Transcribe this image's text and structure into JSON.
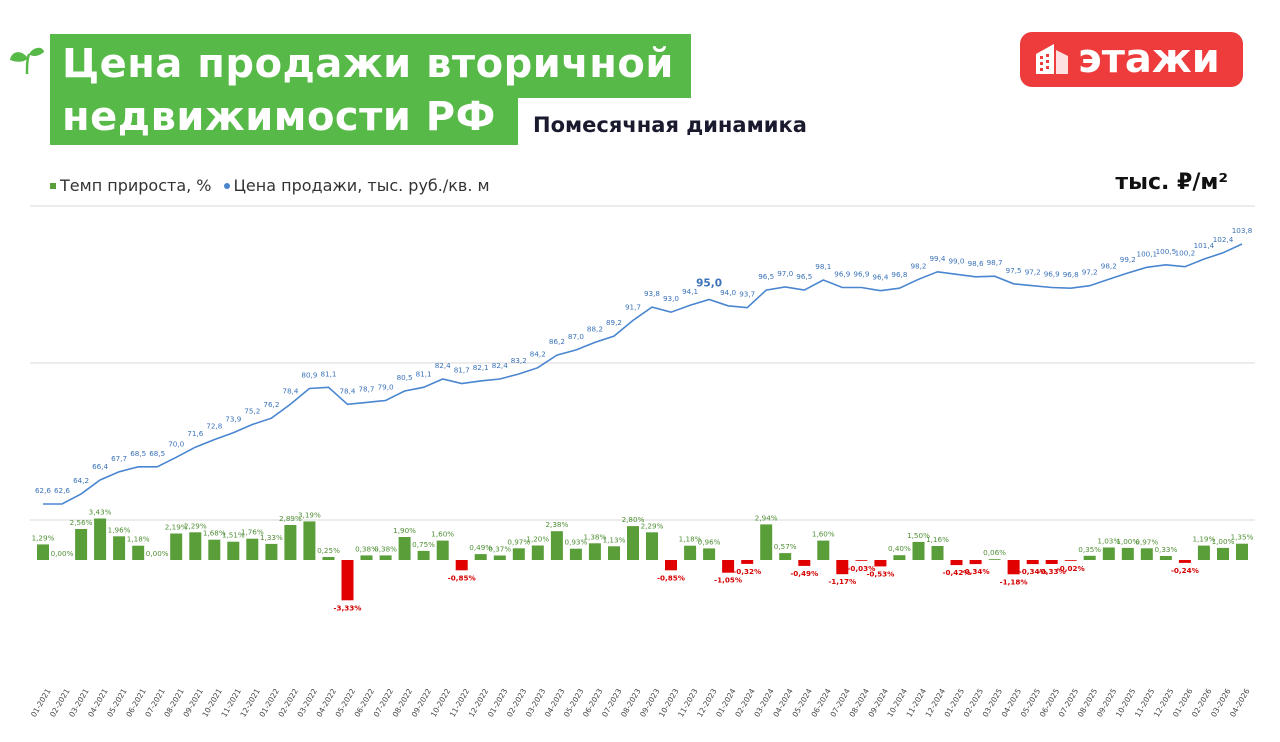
{
  "header": {
    "title_line1": "Цена продажи вторичной",
    "title_line2": "недвижимости РФ",
    "subtitle": "Помесячная динамика",
    "logo_text": "этажи",
    "unit": "тыс. ₽/м²"
  },
  "colors": {
    "title_bg": "#57b947",
    "logo_bg": "#ee3b3b",
    "line": "#4a86d0",
    "bar_positive": "#5a9e3a",
    "bar_negative": "#e00000"
  },
  "chart_data": {
    "type": "bar+line",
    "legend": [
      {
        "label": "Темп прироста, %",
        "marker": "square",
        "color": "#5a9e3a"
      },
      {
        "label": "Цена продажи, тыс. руб./кв. м",
        "marker": "circle",
        "color": "#4a86d0"
      }
    ],
    "categories": [
      "01-2021",
      "02-2021",
      "03-2021",
      "04-2021",
      "05-2021",
      "06-2021",
      "07-2021",
      "08-2021",
      "09-2021",
      "10-2021",
      "11-2021",
      "12-2021",
      "01-2022",
      "02-2022",
      "03-2022",
      "04-2022",
      "05-2022",
      "06-2022",
      "07-2022",
      "08-2022",
      "09-2022",
      "10-2022",
      "11-2022",
      "12-2022",
      "01-2023",
      "02-2023",
      "03-2023",
      "04-2023",
      "05-2023",
      "06-2023",
      "07-2023",
      "08-2023",
      "09-2023",
      "10-2023",
      "11-2023",
      "12-2023",
      "01-2024",
      "02-2024",
      "03-2024",
      "04-2024",
      "05-2024",
      "06-2024",
      "07-2024",
      "08-2024",
      "09-2024",
      "10-2024",
      "11-2024",
      "12-2024",
      "01-2025",
      "02-2025",
      "03-2025",
      "04-2025",
      "05-2025",
      "06-2025",
      "07-2025",
      "08-2025",
      "09-2025",
      "10-2025",
      "11-2025",
      "12-2025",
      "01-2026",
      "02-2026",
      "03-2026",
      "04-2026"
    ],
    "series": [
      {
        "name": "Цена продажи, тыс. руб./кв. м",
        "type": "line",
        "values": [
          62.6,
          62.6,
          64.2,
          66.4,
          67.7,
          68.5,
          68.5,
          70.0,
          71.6,
          72.8,
          73.9,
          75.2,
          76.2,
          78.4,
          80.9,
          81.1,
          78.4,
          78.7,
          79.0,
          80.5,
          81.1,
          82.4,
          81.7,
          82.1,
          82.4,
          83.2,
          84.2,
          86.2,
          87.0,
          88.2,
          89.2,
          91.7,
          93.8,
          93.0,
          94.1,
          95.0,
          94.0,
          93.7,
          96.5,
          97.0,
          96.5,
          98.1,
          96.9,
          96.9,
          96.4,
          96.8,
          98.2,
          99.4,
          99.0,
          98.6,
          98.7,
          97.5,
          97.2,
          96.9,
          96.8,
          97.2,
          98.2,
          99.2,
          100.1,
          100.5,
          100.2,
          101.4,
          102.4,
          103.8
        ],
        "labels": [
          "62,6",
          "62,6",
          "64,2",
          "66,4",
          "67,7",
          "68,5",
          "68,5",
          "70,0",
          "71,6",
          "72,8",
          "73,9",
          "75,2",
          "76,2",
          "78,4",
          "80,9",
          "81,1",
          "78,4",
          "78,7",
          "79,0",
          "80,5",
          "81,1",
          "82,4",
          "81,7",
          "82,1",
          "82,4",
          "83,2",
          "84,2",
          "86,2",
          "87,0",
          "88,2",
          "89,2",
          "91,7",
          "93,8",
          "93,0",
          "94,1",
          "95,0",
          "94,0",
          "93,7",
          "96,5",
          "97,0",
          "96,5",
          "98,1",
          "96,9",
          "96,9",
          "96,4",
          "96,8",
          "98,2",
          "99,4",
          "99,0",
          "98,6",
          "98,7",
          "97,5",
          "97,2",
          "96,9",
          "96,8",
          "97,2",
          "98,2",
          "99,2",
          "100,1",
          "100,5",
          "100,2",
          "101,4",
          "102,4",
          "103,8"
        ]
      },
      {
        "name": "Темп прироста, %",
        "type": "bar",
        "values": [
          1.29,
          0.0,
          2.56,
          3.43,
          1.96,
          1.18,
          0.0,
          2.19,
          2.29,
          1.68,
          1.51,
          1.76,
          1.33,
          2.89,
          3.19,
          0.25,
          -3.33,
          0.38,
          0.38,
          1.9,
          0.75,
          1.6,
          -0.85,
          0.49,
          0.37,
          0.97,
          1.2,
          2.38,
          0.93,
          1.38,
          1.13,
          2.8,
          2.29,
          -0.85,
          1.18,
          0.96,
          -1.05,
          -0.32,
          2.94,
          0.57,
          -0.49,
          1.6,
          -1.17,
          -0.03,
          -0.53,
          0.4,
          1.5,
          1.16,
          -0.42,
          -0.34,
          0.06,
          -1.18,
          -0.34,
          -0.33,
          -0.02,
          0.35,
          1.03,
          1.0,
          0.97,
          0.33,
          -0.24,
          1.19,
          1.0,
          1.35
        ],
        "labels": [
          "1,29%",
          "0,00%",
          "2,56%",
          "3,43%",
          "1,96%",
          "1,18%",
          "0,00%",
          "2,19%",
          "2,29%",
          "1,68%",
          "1,51%",
          "1,76%",
          "1,33%",
          "2,89%",
          "3,19%",
          "0,25%",
          "-3,33%",
          "0,38%",
          "0,38%",
          "1,90%",
          "0,75%",
          "1,60%",
          "-0,85%",
          "0,49%",
          "0,37%",
          "0,97%",
          "1,20%",
          "2,38%",
          "0,93%",
          "1,38%",
          "1,13%",
          "2,80%",
          "2,29%",
          "-0,85%",
          "1,18%",
          "0,96%",
          "-1,05%",
          "-0,32%",
          "2,94%",
          "0,57%",
          "-0,49%",
          "1,60%",
          "-1,17%",
          "-0,03%",
          "-0,53%",
          "0,40%",
          "1,50%",
          "1,16%",
          "-0,42%",
          "-0,34%",
          "0,06%",
          "-1,18%",
          "-0,34%",
          "-0,33%",
          "-0,02%",
          "0,35%",
          "1,03%",
          "1,00%",
          "0,97%",
          "0,33%",
          "-0,24%",
          "1,19%",
          "1,00%",
          "1,35%"
        ]
      }
    ],
    "highlight_label_index": 35,
    "grid": true
  }
}
